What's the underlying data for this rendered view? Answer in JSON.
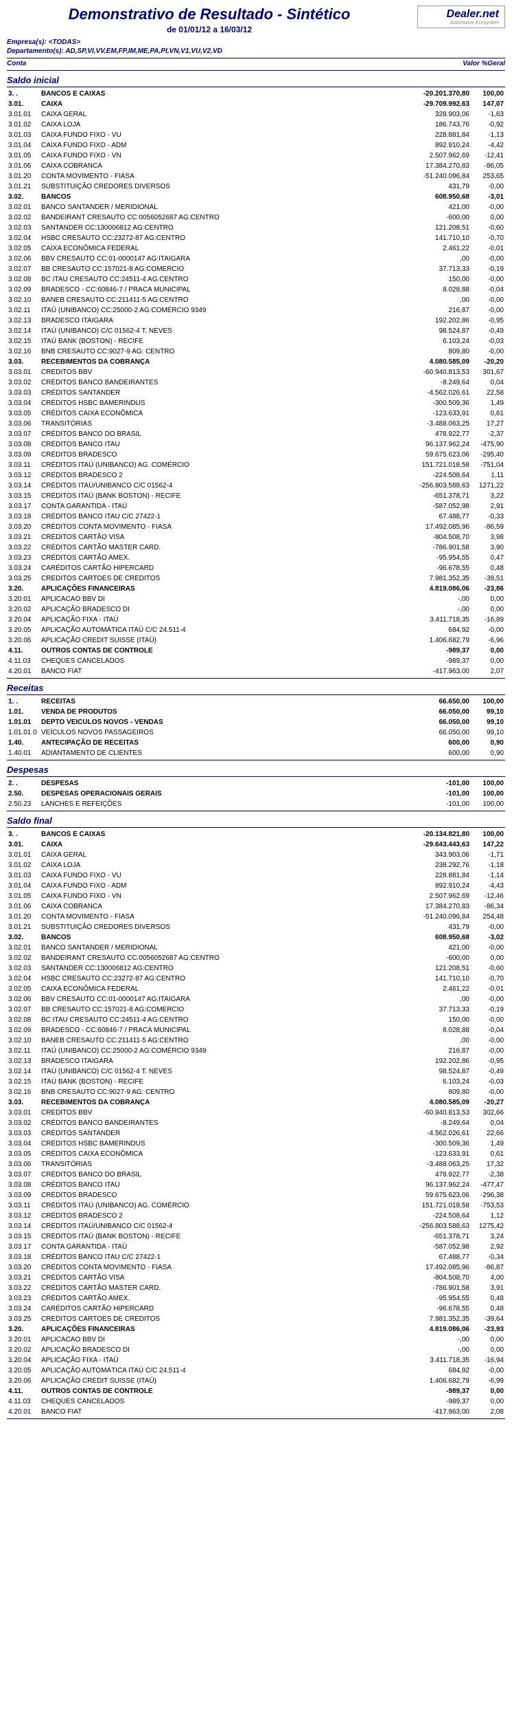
{
  "header": {
    "title": "Demonstrativo de Resultado - Sintético",
    "date_range": "de 01/01/12 a 16/03/12",
    "logo_main": "Dealer.net",
    "logo_sub": "Automotive Ecosystem"
  },
  "meta": {
    "empresas_label": "Empresa(s): <TODAS>",
    "departamentos_label": "Departamento(s): AD,SP,VI,VV,EM,FP,IM,ME,PA,PI,VN,V1,VU,V2,VD"
  },
  "col_headers": {
    "left": "Conta",
    "right": "Valor  %Geral"
  },
  "sections": [
    {
      "title": "Saldo inicial",
      "rows": [
        {
          "b": true,
          "code": "3. .",
          "desc": "BANCOS E CAIXAS",
          "val": "-20.201.370,80",
          "pct": "100,00"
        },
        {
          "b": true,
          "code": "3.01.",
          "desc": "CAIXA",
          "val": "-29.709.992,63",
          "pct": "147,07"
        },
        {
          "code": "3.01.01",
          "desc": "CAIXA GERAL",
          "val": "328.903,06",
          "pct": "-1,63"
        },
        {
          "code": "3.01.02",
          "desc": "CAIXA LOJA",
          "val": "186.743,76",
          "pct": "-0,92"
        },
        {
          "code": "3.01.03",
          "desc": "CAIXA FUNDO FIXO - VU",
          "val": "228.881,84",
          "pct": "-1,13"
        },
        {
          "code": "3.01.04",
          "desc": "CAIXA FUNDO FIXO - ADM",
          "val": "892.910,24",
          "pct": "-4,42"
        },
        {
          "code": "3.01.05",
          "desc": "CAIXA FUNDO FIXO - VN",
          "val": "2.507.962,69",
          "pct": "-12,41"
        },
        {
          "code": "3.01.06",
          "desc": "CAIXA COBRANCA",
          "val": "17.384.270,83",
          "pct": "-86,05"
        },
        {
          "code": "3.01.20",
          "desc": "CONTA MOVIMENTO - FIASA",
          "val": "-51.240.096,84",
          "pct": "253,65"
        },
        {
          "code": "3.01.21",
          "desc": "SUBSTITUIÇÃO CREDORES DIVERSOS",
          "val": "431,79",
          "pct": "-0,00"
        },
        {
          "b": true,
          "code": "3.02.",
          "desc": "BANCOS",
          "val": "608.950,68",
          "pct": "-3,01"
        },
        {
          "code": "3.02.01",
          "desc": "BANCO SANTANDER / MERIDIONAL",
          "val": "421,00",
          "pct": "-0,00"
        },
        {
          "code": "3.02.02",
          "desc": "BANDEIRANT CRESAUTO   CC:0056052687 AG:CENTRO",
          "val": "-600,00",
          "pct": "0,00"
        },
        {
          "code": "3.02.03",
          "desc": "SANTANDER  CC:130006812   AG:CENTRO",
          "val": "121.208,51",
          "pct": "-0,60"
        },
        {
          "code": "3.02.04",
          "desc": "HSBC      CRESAUTO   CC:23272-87   AG:CENTRO",
          "val": "141.710,10",
          "pct": "-0,70"
        },
        {
          "code": "3.02.05",
          "desc": "CAIXA ECONÔMICA FEDERAL",
          "val": "2.461,22",
          "pct": "-0,01"
        },
        {
          "code": "3.02.06",
          "desc": "BBV      CRESAUTO   CC:01-0000147 AG:ITAIGARA",
          "val": ",00",
          "pct": "-0,00"
        },
        {
          "code": "3.02.07",
          "desc": "BB        CRESAUTO   CC:157021-8   AG:COMERCIO",
          "val": "37.713,33",
          "pct": "-0,19"
        },
        {
          "code": "3.02.08",
          "desc": "BC ITAU   CRESAUTO   CC:24511-4   AG:CENTRO",
          "val": "150,00",
          "pct": "-0,00"
        },
        {
          "code": "3.02.09",
          "desc": "BRADESCO -  CC:60846-7 / PRACA MUNICIPAL",
          "val": "8.028,88",
          "pct": "-0,04"
        },
        {
          "code": "3.02.10",
          "desc": "BANEB    CRESAUTO   CC:211411-5   AG:CENTRO",
          "val": ",00",
          "pct": "-0,00"
        },
        {
          "code": "3.02.11",
          "desc": "ITAÚ (UNIBANCO) CC:25000-2  AG:COMÉRCIO 9349",
          "val": "216,87",
          "pct": "-0,00"
        },
        {
          "code": "3.02.13",
          "desc": "BRADESCO ITAIGARA",
          "val": "192.202,86",
          "pct": "-0,95"
        },
        {
          "code": "3.02.14",
          "desc": "ITAÚ (UNIBANCO) C/C 01562-4 T. NEVES",
          "val": "98.524,87",
          "pct": "-0,49"
        },
        {
          "code": "3.02.15",
          "desc": "ITAÚ BANK (BOSTON) - RECIFE",
          "val": "6.103,24",
          "pct": "-0,03"
        },
        {
          "code": "3.02.16",
          "desc": "BNB  CRESAUTO  CC:9027-9   AG: CENTRO",
          "val": "809,80",
          "pct": "-0,00"
        },
        {
          "b": true,
          "code": "3.03.",
          "desc": "RECEBIMENTOS DA COBRANÇA",
          "val": "4.080.585,09",
          "pct": "-20,20"
        },
        {
          "code": "3.03.01",
          "desc": "CREDITOS BBV",
          "val": "-60.940.813,53",
          "pct": "301,67"
        },
        {
          "code": "3.03.02",
          "desc": "CRÉDITOS BANCO BANDEIRANTES",
          "val": "-8.249,64",
          "pct": "0,04"
        },
        {
          "code": "3.03.03",
          "desc": "CRÉDITOS SANTANDER",
          "val": "-4.562.026,61",
          "pct": "22,58"
        },
        {
          "code": "3.03.04",
          "desc": "CRÉDITOS HSBC BAMERINDUS",
          "val": "-300.509,36",
          "pct": "1,49"
        },
        {
          "code": "3.03.05",
          "desc": "CRÉDITOS CAIXA ECONÔMICA",
          "val": "-123.633,91",
          "pct": "0,61"
        },
        {
          "code": "3.03.06",
          "desc": "TRANSITÓRIAS",
          "val": "-3.488.063,25",
          "pct": "17,27"
        },
        {
          "code": "3.03.07",
          "desc": "CRÉDITOS BANCO DO BRASIL",
          "val": "478.922,77",
          "pct": "-2,37"
        },
        {
          "code": "3.03.08",
          "desc": "CRÉDITOS BANCO ITAU",
          "val": "96.137.962,24",
          "pct": "-475,90"
        },
        {
          "code": "3.03.09",
          "desc": "CRÉDITOS BRADESCO",
          "val": "59.675.623,06",
          "pct": "-295,40"
        },
        {
          "code": "3.03.11",
          "desc": "CRÉDITOS ITAÚ (UNIBANCO) AG. COMÉRCIO",
          "val": "151.721.018,58",
          "pct": "-751,04"
        },
        {
          "code": "3.03.12",
          "desc": "CRÉDITOS BRADESCO 2",
          "val": "-224.508,64",
          "pct": "1,11"
        },
        {
          "code": "3.03.14",
          "desc": "CRÉDITOS ITAÚ/UNIBANCO C/C 01562-4",
          "val": "-256.803.588,63",
          "pct": "1271,22"
        },
        {
          "code": "3.03.15",
          "desc": "CRÉDITOS ITAÚ (BANK BOSTON) - RECIFE",
          "val": "-651.378,71",
          "pct": "3,22"
        },
        {
          "code": "3.03.17",
          "desc": "CONTA GARANTIDA - ITAÚ",
          "val": "-587.052,98",
          "pct": "2,91"
        },
        {
          "code": "3.03.18",
          "desc": "CRÉDITOS BANCO ITAU C/C 27422-1",
          "val": "67.488,77",
          "pct": "-0,33"
        },
        {
          "code": "3.03.20",
          "desc": "CRÉDITOS CONTA MOVIMENTO - FIASA",
          "val": "17.492.085,96",
          "pct": "-86,59"
        },
        {
          "code": "3.03.21",
          "desc": "CRÉDITOS CARTÃO VISA",
          "val": "-804.508,70",
          "pct": "3,98"
        },
        {
          "code": "3.03.22",
          "desc": "CRÉDITOS CARTÃO MASTER CARD.",
          "val": "-786.901,58",
          "pct": "3,90"
        },
        {
          "code": "3.03.23",
          "desc": "CRÉDITOS CARTÃO AMEX.",
          "val": "-95.954,55",
          "pct": "0,47"
        },
        {
          "code": "3.03.24",
          "desc": "CARÉDITOS CARTÃO HIPERCARD",
          "val": "-96.678,55",
          "pct": "0,48"
        },
        {
          "code": "3.03.25",
          "desc": "CREDITOS CARTOES DE CREDITOS",
          "val": "7.981.352,35",
          "pct": "-39,51"
        },
        {
          "b": true,
          "code": "3.20.",
          "desc": "APLICAÇÕES FINANCEIRAS",
          "val": "4.819.086,06",
          "pct": "-23,86"
        },
        {
          "code": "3.20.01",
          "desc": "APLICACAO BBV DI",
          "val": "-,00",
          "pct": "0,00"
        },
        {
          "code": "3.20.02",
          "desc": "APLICAÇÃO BRADESCO DI",
          "val": "-,00",
          "pct": "0,00"
        },
        {
          "code": "3.20.04",
          "desc": "APLICAÇÃO FIXA - ITAÚ",
          "val": "3.411.718,35",
          "pct": "-16,89"
        },
        {
          "code": "3.20.05",
          "desc": "APLICAÇÃO AUTOMÁTICA ITAÚ C/C 24.511-4",
          "val": "684,92",
          "pct": "-0,00"
        },
        {
          "code": "3.20.06",
          "desc": "APLICAÇÃO CREDIT SUISSE (ITAÚ)",
          "val": "1.406.682,79",
          "pct": "-6,96"
        },
        {
          "b": true,
          "code": "4.11.",
          "desc": "OUTROS CONTAS DE CONTROLE",
          "val": "-989,37",
          "pct": "0,00"
        },
        {
          "code": "4.11.03",
          "desc": "CHEQUES CANCELADOS",
          "val": "-989,37",
          "pct": "0,00"
        },
        {
          "code": "4.20.01",
          "desc": "BANCO FIAT",
          "val": "-417.963,00",
          "pct": "2,07"
        }
      ]
    },
    {
      "title": "Receitas",
      "rows": [
        {
          "b": true,
          "code": "1. .",
          "desc": "RECEITAS",
          "val": "66.650,00",
          "pct": "100,00"
        },
        {
          "b": true,
          "code": "1.01.",
          "desc": "VENDA DE PRODUTOS",
          "val": "66.050,00",
          "pct": "99,10"
        },
        {
          "b": true,
          "code": "1.01.01",
          "desc": "DEPTO VEICULOS NOVOS - VENDAS",
          "val": "66.050,00",
          "pct": "99,10"
        },
        {
          "code": "1.01.01.0",
          "desc": "VEÍCULOS NOVOS PASSAGEIROS",
          "val": "66.050,00",
          "pct": "99,10"
        },
        {
          "b": true,
          "code": "1.40.",
          "desc": "ANTECIPAÇÃO DE RECEITAS",
          "val": "600,00",
          "pct": "0,90"
        },
        {
          "code": "1.40.01",
          "desc": "ADIANTAMENTO DE CLIENTES",
          "val": "600,00",
          "pct": "0,90"
        }
      ]
    },
    {
      "title": "Despesas",
      "rows": [
        {
          "b": true,
          "code": "2. .",
          "desc": "DESPESAS",
          "val": "-101,00",
          "pct": "100,00"
        },
        {
          "b": true,
          "code": "2.50.",
          "desc": "DESPESAS OPERACIONAIS GERAIS",
          "val": "-101,00",
          "pct": "100,00"
        },
        {
          "code": "2.50.23",
          "desc": "LANCHES E REFEIÇÕES",
          "val": "-101,00",
          "pct": "100,00"
        }
      ]
    },
    {
      "title": "Saldo final",
      "rows": [
        {
          "b": true,
          "code": "3. .",
          "desc": "BANCOS E CAIXAS",
          "val": "-20.134.821,80",
          "pct": "100,00"
        },
        {
          "b": true,
          "code": "3.01.",
          "desc": "CAIXA",
          "val": "-29.643.443,63",
          "pct": "147,22"
        },
        {
          "code": "3.01.01",
          "desc": "CAIXA GERAL",
          "val": "343.903,06",
          "pct": "-1,71"
        },
        {
          "code": "3.01.02",
          "desc": "CAIXA LOJA",
          "val": "238.292,76",
          "pct": "-1,18"
        },
        {
          "code": "3.01.03",
          "desc": "CAIXA FUNDO FIXO - VU",
          "val": "228.881,84",
          "pct": "-1,14"
        },
        {
          "code": "3.01.04",
          "desc": "CAIXA FUNDO FIXO - ADM",
          "val": "892.910,24",
          "pct": "-4,43"
        },
        {
          "code": "3.01.05",
          "desc": "CAIXA FUNDO FIXO - VN",
          "val": "2.507.962,69",
          "pct": "-12,46"
        },
        {
          "code": "3.01.06",
          "desc": "CAIXA COBRANCA",
          "val": "17.384.270,83",
          "pct": "-86,34"
        },
        {
          "code": "3.01.20",
          "desc": "CONTA MOVIMENTO - FIASA",
          "val": "-51.240.096,84",
          "pct": "254,48"
        },
        {
          "code": "3.01.21",
          "desc": "SUBSTITUIÇÃO CREDORES DIVERSOS",
          "val": "431,79",
          "pct": "-0,00"
        },
        {
          "b": true,
          "code": "3.02.",
          "desc": "BANCOS",
          "val": "608.950,68",
          "pct": "-3,02"
        },
        {
          "code": "3.02.01",
          "desc": "BANCO SANTANDER / MERIDIONAL",
          "val": "421,00",
          "pct": "-0,00"
        },
        {
          "code": "3.02.02",
          "desc": "BANDEIRANT CRESAUTO   CC:0056052687 AG:CENTRO",
          "val": "-600,00",
          "pct": "0,00"
        },
        {
          "code": "3.02.03",
          "desc": "SANTANDER  CC:130006812   AG:CENTRO",
          "val": "121.208,51",
          "pct": "-0,60"
        },
        {
          "code": "3.02.04",
          "desc": "HSBC      CRESAUTO   CC:23272-87   AG:CENTRO",
          "val": "141.710,10",
          "pct": "-0,70"
        },
        {
          "code": "3.02.05",
          "desc": "CAIXA ECONÔMICA FEDERAL",
          "val": "2.461,22",
          "pct": "-0,01"
        },
        {
          "code": "3.02.06",
          "desc": "BBV      CRESAUTO   CC:01-0000147 AG:ITAIGARA",
          "val": ",00",
          "pct": "-0,00"
        },
        {
          "code": "3.02.07",
          "desc": "BB        CRESAUTO   CC:157021-8   AG:COMERCIO",
          "val": "37.713,33",
          "pct": "-0,19"
        },
        {
          "code": "3.02.08",
          "desc": "BC ITAU   CRESAUTO   CC:24511-4   AG:CENTRO",
          "val": "150,00",
          "pct": "-0,00"
        },
        {
          "code": "3.02.09",
          "desc": "BRADESCO -  CC:60846-7 / PRACA MUNICIPAL",
          "val": "8.028,88",
          "pct": "-0,04"
        },
        {
          "code": "3.02.10",
          "desc": "BANEB    CRESAUTO   CC:211411-5   AG:CENTRO",
          "val": ",00",
          "pct": "-0,00"
        },
        {
          "code": "3.02.11",
          "desc": "ITAÚ (UNIBANCO) CC:25000-2  AG:COMÉRCIO 9349",
          "val": "216,87",
          "pct": "-0,00"
        },
        {
          "code": "3.02.13",
          "desc": "BRADESCO ITAIGARA",
          "val": "192.202,86",
          "pct": "-0,95"
        },
        {
          "code": "3.02.14",
          "desc": "ITAÚ (UNIBANCO) C/C 01562-4 T. NEVES",
          "val": "98.524,87",
          "pct": "-0,49"
        },
        {
          "code": "3.02.15",
          "desc": "ITAÚ BANK (BOSTON) - RECIFE",
          "val": "6.103,24",
          "pct": "-0,03"
        },
        {
          "code": "3.02.16",
          "desc": "BNB  CRESAUTO  CC:9027-9   AG: CENTRO",
          "val": "809,80",
          "pct": "-0,00"
        },
        {
          "b": true,
          "code": "3.03.",
          "desc": "RECEBIMENTOS DA COBRANÇA",
          "val": "4.080.585,09",
          "pct": "-20,27"
        },
        {
          "code": "3.03.01",
          "desc": "CREDITOS BBV",
          "val": "-60.940.813,53",
          "pct": "302,66"
        },
        {
          "code": "3.03.02",
          "desc": "CRÉDITOS BANCO BANDEIRANTES",
          "val": "-8.249,64",
          "pct": "0,04"
        },
        {
          "code": "3.03.03",
          "desc": "CRÉDITOS SANTANDER",
          "val": "-4.562.026,61",
          "pct": "22,66"
        },
        {
          "code": "3.03.04",
          "desc": "CRÉDITOS HSBC BAMERINDUS",
          "val": "-300.509,36",
          "pct": "1,49"
        },
        {
          "code": "3.03.05",
          "desc": "CRÉDITOS CAIXA ECONÔMICA",
          "val": "-123.633,91",
          "pct": "0,61"
        },
        {
          "code": "3.03.06",
          "desc": "TRANSITÓRIAS",
          "val": "-3.488.063,25",
          "pct": "17,32"
        },
        {
          "code": "3.03.07",
          "desc": "CRÉDITOS BANCO DO BRASIL",
          "val": "478.922,77",
          "pct": "-2,38"
        },
        {
          "code": "3.03.08",
          "desc": "CRÉDITOS BANCO ITAU",
          "val": "96.137.962,24",
          "pct": "-477,47"
        },
        {
          "code": "3.03.09",
          "desc": "CRÉDITOS BRADESCO",
          "val": "59.675.623,06",
          "pct": "-296,38"
        },
        {
          "code": "3.03.11",
          "desc": "CRÉDITOS ITAÚ (UNIBANCO) AG. COMÉRCIO",
          "val": "151.721.018,58",
          "pct": "-753,53"
        },
        {
          "code": "3.03.12",
          "desc": "CRÉDITOS BRADESCO 2",
          "val": "-224.508,64",
          "pct": "1,12"
        },
        {
          "code": "3.03.14",
          "desc": "CRÉDITOS ITAÚ/UNIBANCO C/C 01562-4",
          "val": "-256.803.588,63",
          "pct": "1275,42"
        },
        {
          "code": "3.03.15",
          "desc": "CRÉDITOS ITAÚ (BANK BOSTON) - RECIFE",
          "val": "-651.378,71",
          "pct": "3,24"
        },
        {
          "code": "3.03.17",
          "desc": "CONTA GARANTIDA - ITAÚ",
          "val": "-587.052,98",
          "pct": "2,92"
        },
        {
          "code": "3.03.18",
          "desc": "CRÉDITOS BANCO ITAU C/C 27422-1",
          "val": "67.488,77",
          "pct": "-0,34"
        },
        {
          "code": "3.03.20",
          "desc": "CRÉDITOS CONTA MOVIMENTO - FIASA",
          "val": "17.492.085,96",
          "pct": "-86,87"
        },
        {
          "code": "3.03.21",
          "desc": "CRÉDITOS CARTÃO VISA",
          "val": "-804.508,70",
          "pct": "4,00"
        },
        {
          "code": "3.03.22",
          "desc": "CRÉDITOS CARTÃO MASTER CARD.",
          "val": "-786.901,58",
          "pct": "3,91"
        },
        {
          "code": "3.03.23",
          "desc": "CRÉDITOS CARTÃO AMEX.",
          "val": "-95.954,55",
          "pct": "0,48"
        },
        {
          "code": "3.03.24",
          "desc": "CARÉDITOS CARTÃO HIPERCARD",
          "val": "-96.678,55",
          "pct": "0,48"
        },
        {
          "code": "3.03.25",
          "desc": "CREDITOS CARTOES DE CREDITOS",
          "val": "7.981.352,35",
          "pct": "-39,64"
        },
        {
          "b": true,
          "code": "3.20.",
          "desc": "APLICAÇÕES FINANCEIRAS",
          "val": "4.819.086,06",
          "pct": "-23,93"
        },
        {
          "code": "3.20.01",
          "desc": "APLICACAO BBV DI",
          "val": "-,00",
          "pct": "0,00"
        },
        {
          "code": "3.20.02",
          "desc": "APLICAÇÃO BRADESCO DI",
          "val": "-,00",
          "pct": "0,00"
        },
        {
          "code": "3.20.04",
          "desc": "APLICAÇÃO FIXA - ITAÚ",
          "val": "3.411.718,35",
          "pct": "-16,94"
        },
        {
          "code": "3.20.05",
          "desc": "APLICAÇÃO AUTOMÁTICA ITAÚ C/C 24.511-4",
          "val": "684,92",
          "pct": "-0,00"
        },
        {
          "code": "3.20.06",
          "desc": "APLICAÇÃO CREDIT SUISSE (ITAÚ)",
          "val": "1.406.682,79",
          "pct": "-6,99"
        },
        {
          "b": true,
          "code": "4.11.",
          "desc": "OUTROS CONTAS DE CONTROLE",
          "val": "-989,37",
          "pct": "0,00"
        },
        {
          "code": "4.11.03",
          "desc": "CHEQUES CANCELADOS",
          "val": "-989,37",
          "pct": "0,00"
        },
        {
          "code": "4.20.01",
          "desc": "BANCO FIAT",
          "val": "-417.963,00",
          "pct": "2,08"
        }
      ]
    }
  ]
}
